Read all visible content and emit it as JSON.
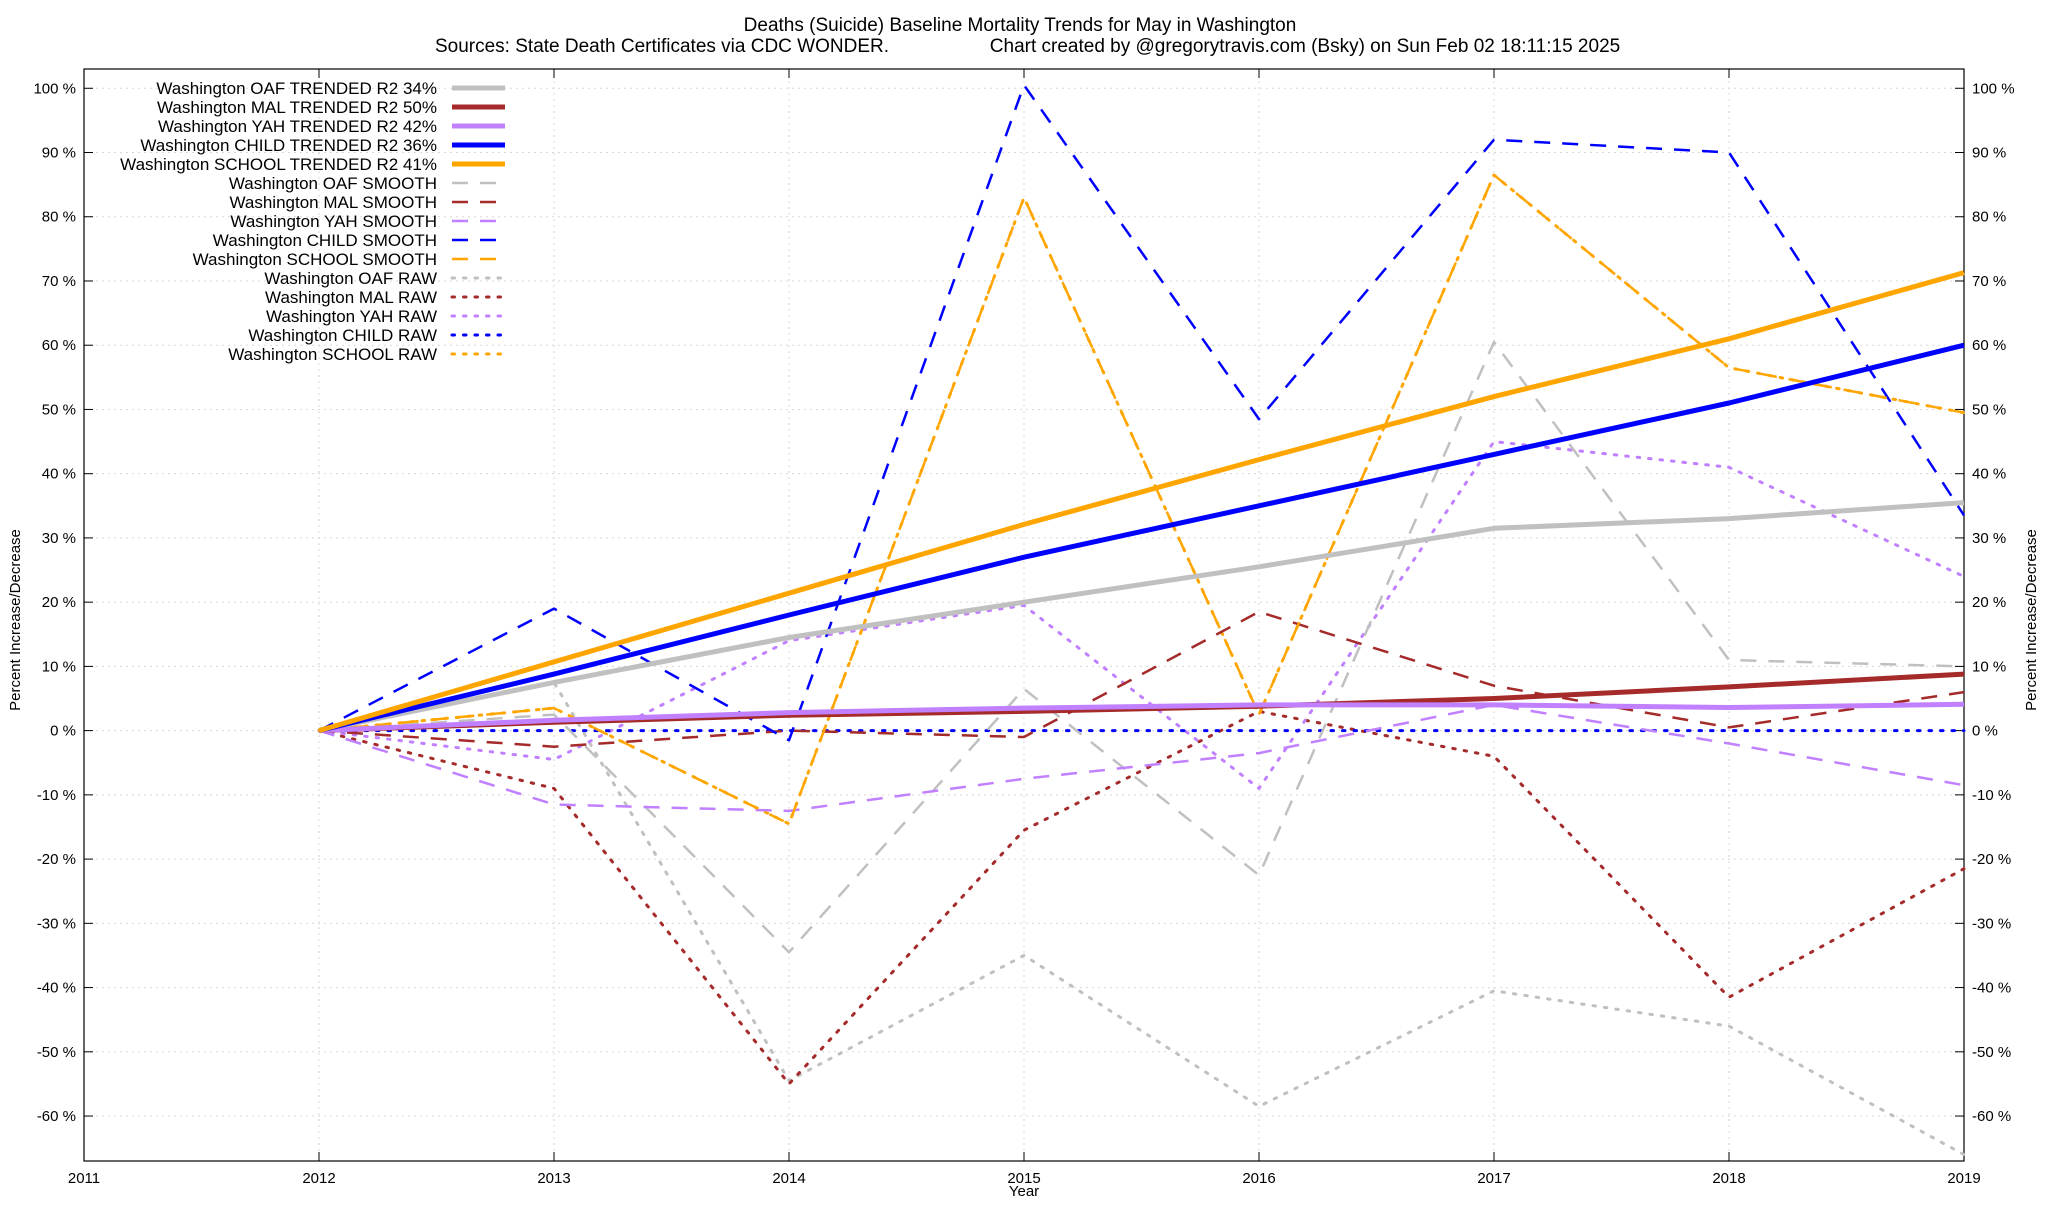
{
  "chart_data": {
    "type": "line",
    "title": "Deaths (Suicide)  Baseline Mortality Trends for May in Washington",
    "subtitle_left": "Sources: State Death Certificates via CDC WONDER.",
    "subtitle_right": "Chart created by @gregorytravis.com (Bsky) on Sun Feb 02 18:11:15 2025",
    "xlabel": "Year",
    "ylabel": "Percent Increase/Decrease",
    "y2label": "Percent Increase/Decrease",
    "xlim": [
      2011,
      2019
    ],
    "ylim": [
      -67,
      103
    ],
    "x_ticks": [
      "2011",
      "2012",
      "2013",
      "2014",
      "2015",
      "2016",
      "2017",
      "2018",
      "2019"
    ],
    "y_ticks": [
      {
        "v": 100,
        "label": "100 %"
      },
      {
        "v": 90,
        "label": "90 %"
      },
      {
        "v": 80,
        "label": "80 %"
      },
      {
        "v": 70,
        "label": "70 %"
      },
      {
        "v": 60,
        "label": "60 %"
      },
      {
        "v": 50,
        "label": "50 %"
      },
      {
        "v": 40,
        "label": "40 %"
      },
      {
        "v": 30,
        "label": "30 %"
      },
      {
        "v": 20,
        "label": "20 %"
      },
      {
        "v": 10,
        "label": "10 %"
      },
      {
        "v": 0,
        "label": "0 %"
      },
      {
        "v": -10,
        "label": "-10 %"
      },
      {
        "v": -20,
        "label": "-20 %"
      },
      {
        "v": -30,
        "label": "-30 %"
      },
      {
        "v": -40,
        "label": "-40 %"
      },
      {
        "v": -50,
        "label": "-50 %"
      },
      {
        "v": -60,
        "label": "-60 %"
      }
    ],
    "grid": true,
    "legend_placement": "top-left",
    "x": [
      2012,
      2013,
      2014,
      2015,
      2016,
      2017,
      2018,
      2019
    ],
    "series": [
      {
        "name": "Washington OAF TRENDED R2  34%",
        "style": "solid",
        "color": "#c0c0c0",
        "values": [
          0,
          7.5,
          14.5,
          20,
          25.5,
          31.5,
          33,
          35.5
        ]
      },
      {
        "name": "Washington MAL TRENDED R2  50%",
        "style": "solid",
        "color": "#a52a2a",
        "values": [
          0,
          1.3,
          2.4,
          3,
          3.8,
          5,
          6.8,
          8.8
        ]
      },
      {
        "name": "Washington YAH TRENDED R2  42%",
        "style": "solid",
        "color": "#c080ff",
        "values": [
          0,
          1.6,
          2.8,
          3.5,
          4,
          4,
          3.6,
          4.1
        ]
      },
      {
        "name": "Washington CHILD TRENDED R2  36%",
        "style": "solid",
        "color": "#0000ff",
        "values": [
          0,
          8.8,
          18,
          27,
          35,
          43,
          51,
          60
        ]
      },
      {
        "name": "Washington SCHOOL TRENDED R2  41%",
        "style": "solid",
        "color": "#ffa500",
        "values": [
          0,
          10.7,
          21.4,
          32.1,
          42.2,
          52,
          61,
          71.3
        ]
      },
      {
        "name": "Washington OAF SMOOTH",
        "style": "dashed",
        "color": "#c0c0c0",
        "values": [
          0,
          2.5,
          -34.5,
          6.5,
          -22.5,
          60.5,
          11,
          10
        ]
      },
      {
        "name": "Washington MAL SMOOTH",
        "style": "dashed",
        "color": "#a52a2a",
        "values": [
          0,
          -2.5,
          0,
          -1,
          18.5,
          7,
          0.5,
          6
        ]
      },
      {
        "name": "Washington YAH SMOOTH",
        "style": "dashed",
        "color": "#c080ff",
        "values": [
          0,
          -11.5,
          -12.5,
          -7.5,
          -3.5,
          4,
          -2,
          -8.5
        ]
      },
      {
        "name": "Washington CHILD SMOOTH",
        "style": "dashed",
        "color": "#0000ff",
        "values": [
          0,
          19,
          -1.5,
          100.5,
          48.5,
          92,
          90,
          33.5
        ]
      },
      {
        "name": "Washington SCHOOL SMOOTH",
        "style": "dashed",
        "color": "#ffa500",
        "values": [
          0,
          3.5,
          -14.5,
          83,
          2.5,
          86.5,
          56.5,
          49.5
        ]
      },
      {
        "name": "Washington OAF RAW",
        "style": "dotted",
        "color": "#c0c0c0",
        "values": [
          0,
          7.5,
          -54.5,
          -35,
          -58.5,
          -40.5,
          -46,
          -66
        ]
      },
      {
        "name": "Washington MAL RAW",
        "style": "dotted",
        "color": "#a52a2a",
        "values": [
          0,
          -9,
          -55,
          -15.5,
          3,
          -4,
          -41.5,
          -21.5
        ]
      },
      {
        "name": "Washington YAH RAW",
        "style": "dotted",
        "color": "#c080ff",
        "values": [
          0,
          -4.5,
          14,
          19.5,
          -9,
          45,
          41,
          24
        ]
      },
      {
        "name": "Washington CHILD RAW",
        "style": "dotted",
        "color": "#0000ff",
        "values": [
          0,
          0,
          0,
          0,
          0,
          0,
          0,
          0
        ]
      },
      {
        "name": "Washington SCHOOL RAW",
        "style": "dotted",
        "color": "#ffa500",
        "values": [
          0,
          3.5,
          -14.5,
          83,
          2.5,
          86.5,
          56.5,
          49.5
        ]
      }
    ]
  }
}
